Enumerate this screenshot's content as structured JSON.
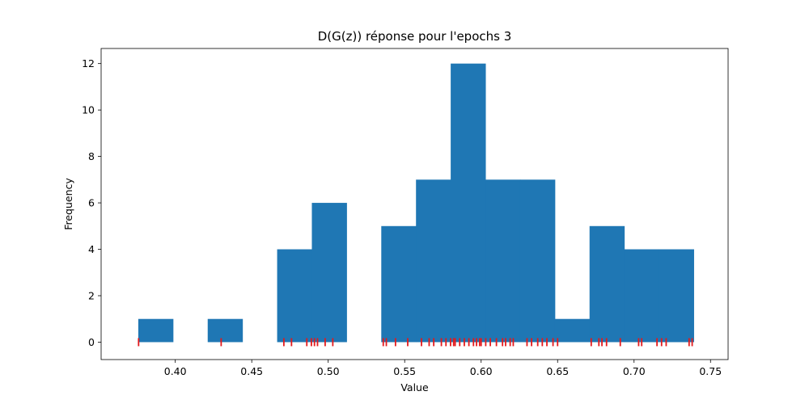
{
  "chart_data": {
    "type": "bar",
    "title": "D(G(z)) réponse pour l'epochs 3",
    "xlabel": "Value",
    "ylabel": "Frequency",
    "xlim": [
      0.3515,
      0.7615
    ],
    "ylim": [
      -0.75,
      12.65
    ],
    "xticks": [
      {
        "value": 0.4,
        "label": "0.40"
      },
      {
        "value": 0.45,
        "label": "0.45"
      },
      {
        "value": 0.5,
        "label": "0.50"
      },
      {
        "value": 0.55,
        "label": "0.55"
      },
      {
        "value": 0.6,
        "label": "0.60"
      },
      {
        "value": 0.65,
        "label": "0.65"
      },
      {
        "value": 0.7,
        "label": "0.70"
      },
      {
        "value": 0.75,
        "label": "0.75"
      }
    ],
    "yticks": [
      {
        "value": 0,
        "label": "0"
      },
      {
        "value": 2,
        "label": "2"
      },
      {
        "value": 4,
        "label": "4"
      },
      {
        "value": 6,
        "label": "6"
      },
      {
        "value": 8,
        "label": "8"
      },
      {
        "value": 10,
        "label": "10"
      },
      {
        "value": 12,
        "label": "12"
      }
    ],
    "bin_edges": [
      0.3758,
      0.3985,
      0.4212,
      0.4439,
      0.4666,
      0.4893,
      0.512,
      0.5347,
      0.5574,
      0.5801,
      0.6028,
      0.6255,
      0.6482,
      0.6709,
      0.6936,
      0.7163,
      0.739
    ],
    "counts": [
      1,
      0,
      1,
      0,
      4,
      6,
      0,
      5,
      7,
      12,
      7,
      7,
      1,
      5,
      4,
      4
    ],
    "bar_color": "#1f77b4",
    "rug_color": "#e41a1c",
    "rug_values": [
      0.376,
      0.43,
      0.471,
      0.476,
      0.486,
      0.489,
      0.491,
      0.493,
      0.498,
      0.503,
      0.536,
      0.538,
      0.544,
      0.552,
      0.561,
      0.566,
      0.569,
      0.574,
      0.577,
      0.58,
      0.582,
      0.583,
      0.586,
      0.589,
      0.592,
      0.595,
      0.597,
      0.599,
      0.6,
      0.603,
      0.606,
      0.61,
      0.614,
      0.616,
      0.619,
      0.621,
      0.63,
      0.633,
      0.637,
      0.64,
      0.643,
      0.647,
      0.65,
      0.672,
      0.677,
      0.679,
      0.682,
      0.691,
      0.703,
      0.705,
      0.715,
      0.718,
      0.721,
      0.736,
      0.738
    ],
    "grid": false,
    "legend": "none"
  }
}
